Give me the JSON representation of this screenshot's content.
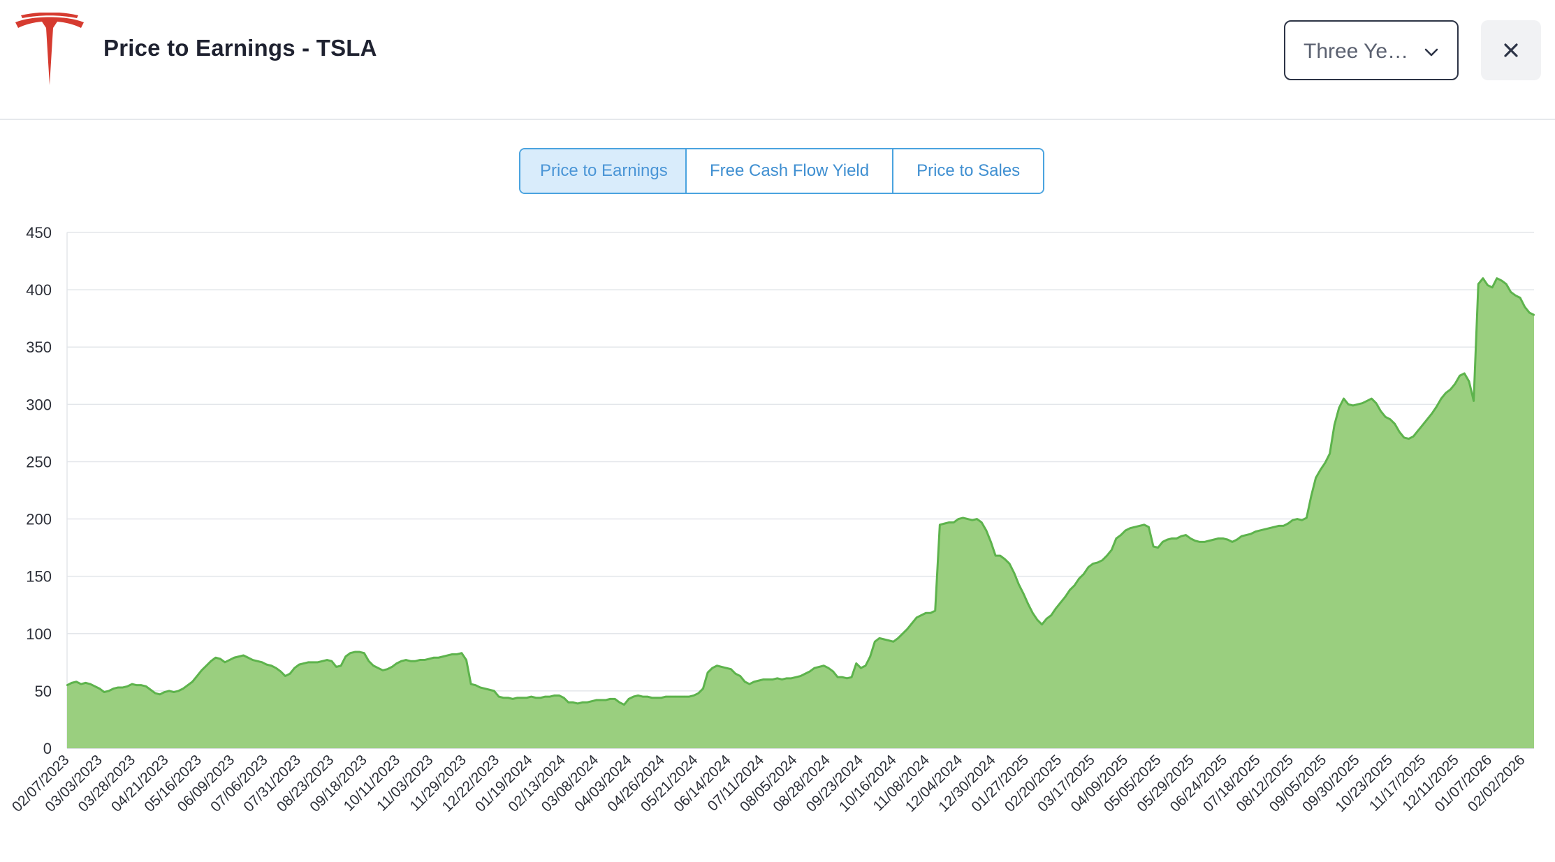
{
  "header": {
    "title": "Price to Earnings - TSLA",
    "range_select": {
      "value": "Three Ye…"
    }
  },
  "tabs": [
    {
      "label": "Price to Earnings",
      "active": true
    },
    {
      "label": "Free Cash Flow Yield",
      "active": false
    },
    {
      "label": "Price to Sales",
      "active": false
    }
  ],
  "colors": {
    "accent": "#4aa3df",
    "series_line": "#5db34c",
    "series_fill": "#9acf7f",
    "brand": "#d63b30"
  },
  "chart_data": {
    "type": "area",
    "title": "",
    "xlabel": "",
    "ylabel": "",
    "ylim": [
      0,
      450
    ],
    "yticks": [
      0,
      50,
      100,
      150,
      200,
      250,
      300,
      350,
      400,
      450
    ],
    "grid": true,
    "legend": "none",
    "x_tick_labels": [
      "02/07/2023",
      "03/03/2023",
      "03/28/2023",
      "04/21/2023",
      "05/16/2023",
      "06/09/2023",
      "07/06/2023",
      "07/31/2023",
      "08/23/2023",
      "09/18/2023",
      "10/11/2023",
      "11/03/2023",
      "11/29/2023",
      "12/22/2023",
      "01/19/2024",
      "02/13/2024",
      "03/08/2024",
      "04/03/2024",
      "04/26/2024",
      "05/21/2024",
      "06/14/2024",
      "07/11/2024",
      "08/05/2024",
      "08/28/2024",
      "09/23/2024",
      "10/16/2024",
      "11/08/2024",
      "12/04/2024",
      "12/30/2024",
      "01/27/2025",
      "02/20/2025",
      "03/17/2025",
      "04/09/2025",
      "05/05/2025",
      "05/29/2025",
      "06/24/2025",
      "07/18/2025",
      "08/12/2025",
      "09/05/2025",
      "09/30/2025",
      "10/23/2025",
      "11/17/2025",
      "12/11/2025",
      "01/07/2026",
      "02/02/2026"
    ],
    "series": [
      {
        "values": [
          55,
          57,
          58,
          56,
          57,
          56,
          54,
          52,
          49,
          50,
          52,
          53,
          53,
          54,
          56,
          55,
          55,
          54,
          51,
          48,
          47,
          49,
          50,
          49,
          50,
          52,
          55,
          58,
          63,
          68,
          72,
          76,
          79,
          78,
          75,
          77,
          79,
          80,
          81,
          79,
          77,
          76,
          75,
          73,
          72,
          70,
          67,
          63,
          65,
          70,
          73,
          74,
          75,
          75,
          75,
          76,
          77,
          76,
          71,
          72,
          80,
          83,
          84,
          84,
          83,
          76,
          72,
          70,
          68,
          69,
          71,
          74,
          76,
          77,
          76,
          76,
          77,
          77,
          78,
          79,
          79,
          80,
          81,
          82,
          82,
          83,
          77,
          56,
          55,
          53,
          52,
          51,
          50,
          45,
          44,
          44,
          43,
          44,
          44,
          44,
          45,
          44,
          44,
          45,
          45,
          46,
          46,
          44,
          40,
          40,
          39,
          40,
          40,
          41,
          42,
          42,
          42,
          43,
          43,
          40,
          38,
          43,
          45,
          46,
          45,
          45,
          44,
          44,
          44,
          45,
          45,
          45,
          45,
          45,
          45,
          46,
          48,
          52,
          66,
          70,
          72,
          71,
          70,
          69,
          65,
          63,
          58,
          56,
          58,
          59,
          60,
          60,
          60,
          61,
          60,
          61,
          61,
          62,
          63,
          65,
          67,
          70,
          71,
          72,
          70,
          67,
          62,
          62,
          61,
          62,
          74,
          70,
          72,
          80,
          93,
          96,
          95,
          94,
          93,
          96,
          100,
          104,
          109,
          114,
          116,
          118,
          118,
          120,
          195,
          196,
          197,
          197,
          200,
          201,
          200,
          199,
          200,
          197,
          190,
          180,
          168,
          168,
          165,
          161,
          153,
          143,
          135,
          126,
          118,
          112,
          108,
          113,
          116,
          122,
          127,
          132,
          138,
          142,
          148,
          152,
          158,
          161,
          162,
          164,
          168,
          173,
          183,
          186,
          190,
          192,
          193,
          194,
          195,
          193,
          176,
          175,
          180,
          182,
          183,
          183,
          185,
          186,
          183,
          181,
          180,
          180,
          181,
          182,
          183,
          183,
          182,
          180,
          182,
          185,
          186,
          187,
          189,
          190,
          191,
          192,
          193,
          194,
          194,
          196,
          199,
          200,
          199,
          201,
          220,
          236,
          243,
          249,
          257,
          282,
          297,
          305,
          300,
          299,
          300,
          301,
          303,
          305,
          301,
          294,
          289,
          287,
          283,
          276,
          271,
          270,
          272,
          277,
          282,
          287,
          292,
          298,
          305,
          310,
          313,
          318,
          325,
          327,
          320,
          303,
          405,
          410,
          404,
          402,
          410,
          408,
          405,
          398,
          395,
          393,
          385,
          380,
          378
        ]
      }
    ]
  }
}
